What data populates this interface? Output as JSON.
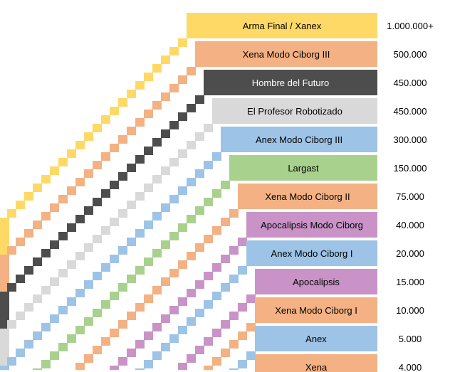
{
  "colors": {
    "yellow": "#FFD966",
    "orange": "#F4B183",
    "dark": "#4D4D4D",
    "light_gray": "#D9D9D9",
    "blue": "#9DC3E6",
    "green": "#A9D18E",
    "purple": "#C993C7",
    "background": "#FFFFFF"
  },
  "chart_data": {
    "type": "bar",
    "categories": [
      "Arma Final / Xanex",
      "Xena Modo Ciborg III",
      "Hombre del Futuro",
      "El Profesor Robotizado",
      "Anex Modo Ciborg III",
      "Largast",
      "Xena Modo Ciborg II",
      "Apocalipsis Modo Ciborg",
      "Anex Modo Ciborg I",
      "Apocalipsis",
      "Xena Modo Ciborg I",
      "Anex",
      "Xena"
    ],
    "value_labels": [
      "1.000.000+",
      "500.000",
      "450.000",
      "450.000",
      "300.000",
      "150.000",
      "75.000",
      "40.000",
      "20.000",
      "15.000",
      "10.000",
      "5.000",
      "4.000"
    ],
    "values": [
      1000000,
      500000,
      450000,
      450000,
      300000,
      150000,
      75000,
      40000,
      20000,
      15000,
      10000,
      5000,
      4000
    ],
    "bar_colors": [
      "yellow",
      "orange",
      "dark",
      "light_gray",
      "blue",
      "green",
      "orange",
      "purple",
      "blue",
      "purple",
      "orange",
      "blue",
      "orange"
    ],
    "label_colors": [
      "#000000",
      "#000000",
      "#FFFFFF",
      "#000000",
      "#000000",
      "#000000",
      "#000000",
      "#000000",
      "#000000",
      "#000000",
      "#000000",
      "#000000",
      "#000000"
    ],
    "title": "",
    "xlabel": "",
    "ylabel": ""
  }
}
